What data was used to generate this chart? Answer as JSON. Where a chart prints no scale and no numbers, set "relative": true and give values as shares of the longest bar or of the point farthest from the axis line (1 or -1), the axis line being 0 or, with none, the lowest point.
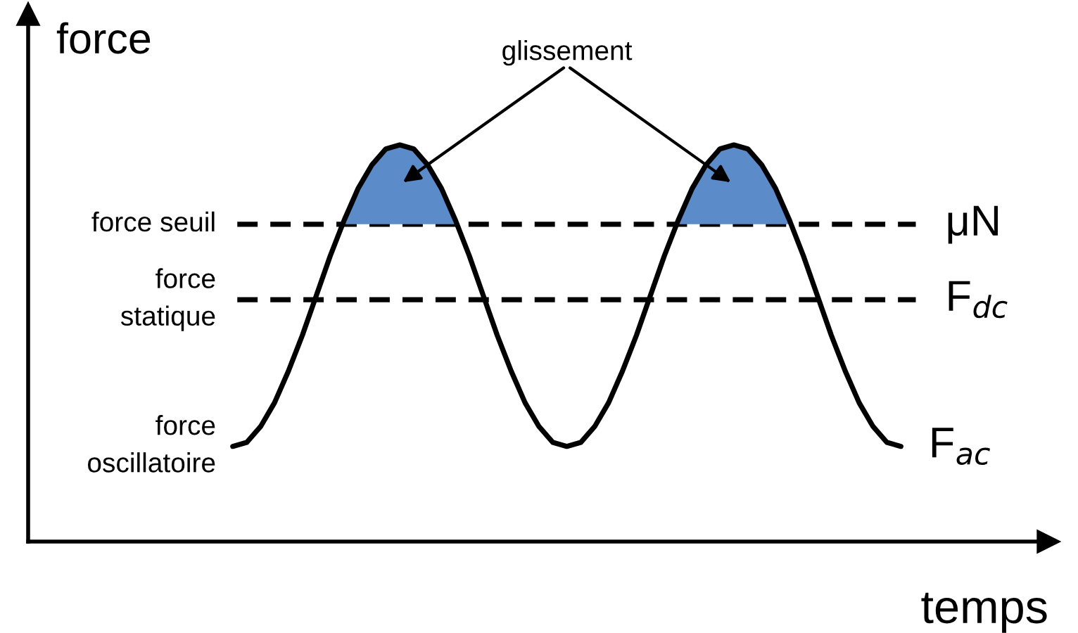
{
  "chart_data": {
    "type": "line",
    "relative": true,
    "xlabel": "temps",
    "ylabel": "force",
    "legend": false,
    "categories": [
      null,
      null,
      null,
      null,
      null,
      null,
      null,
      null,
      null,
      null,
      null,
      null,
      null,
      null,
      null,
      null,
      null,
      null,
      null,
      null,
      null,
      null,
      null,
      null,
      null,
      null,
      null,
      null,
      null,
      null,
      null,
      null,
      null,
      null,
      null,
      null,
      null,
      null,
      null,
      null,
      null,
      null,
      null,
      null,
      null,
      null,
      null,
      null,
      null
    ],
    "series": [
      {
        "name": "F$_{ac}$",
        "color": "#000000",
        "values": [
          0.24,
          0.25,
          0.29,
          0.35,
          0.43,
          0.52,
          0.62,
          0.72,
          0.81,
          0.89,
          0.95,
          0.99,
          1.0,
          0.99,
          0.95,
          0.89,
          0.81,
          0.72,
          0.62,
          0.52,
          0.43,
          0.35,
          0.29,
          0.25,
          0.24,
          0.25,
          0.29,
          0.35,
          0.43,
          0.52,
          0.62,
          0.72,
          0.81,
          0.89,
          0.95,
          0.99,
          1.0,
          0.99,
          0.95,
          0.89,
          0.81,
          0.72,
          0.62,
          0.52,
          0.43,
          0.35,
          0.29,
          0.25,
          0.24
        ]
      },
      {
        "type": "area",
        "color": "#5b8bc9",
        "values": [
          null,
          null,
          null,
          null,
          null,
          null,
          null,
          null,
          0.81,
          0.89,
          0.95,
          0.99,
          1.0,
          0.99,
          0.95,
          0.89,
          0.81,
          null,
          null,
          null,
          null,
          null,
          null,
          null,
          null,
          null,
          null,
          null,
          null,
          null,
          null,
          null,
          0.81,
          0.89,
          0.95,
          0.99,
          1.0,
          0.99,
          0.95,
          0.89,
          0.81,
          null,
          null,
          null,
          null,
          null,
          null,
          null,
          null
        ]
      }
    ],
    "ref_lines": [
      {
        "axis": "y",
        "value": 0.8,
        "label": "μN",
        "color": "#000000",
        "line_style": "dashed"
      },
      {
        "axis": "y",
        "value": 0.61,
        "label": "F$_{dc}$",
        "color": "#000000",
        "line_style": "dashed"
      }
    ],
    "annotations": [
      "force seuil",
      "force\nstatique",
      "force\noscillatoire",
      "glissement"
    ]
  }
}
